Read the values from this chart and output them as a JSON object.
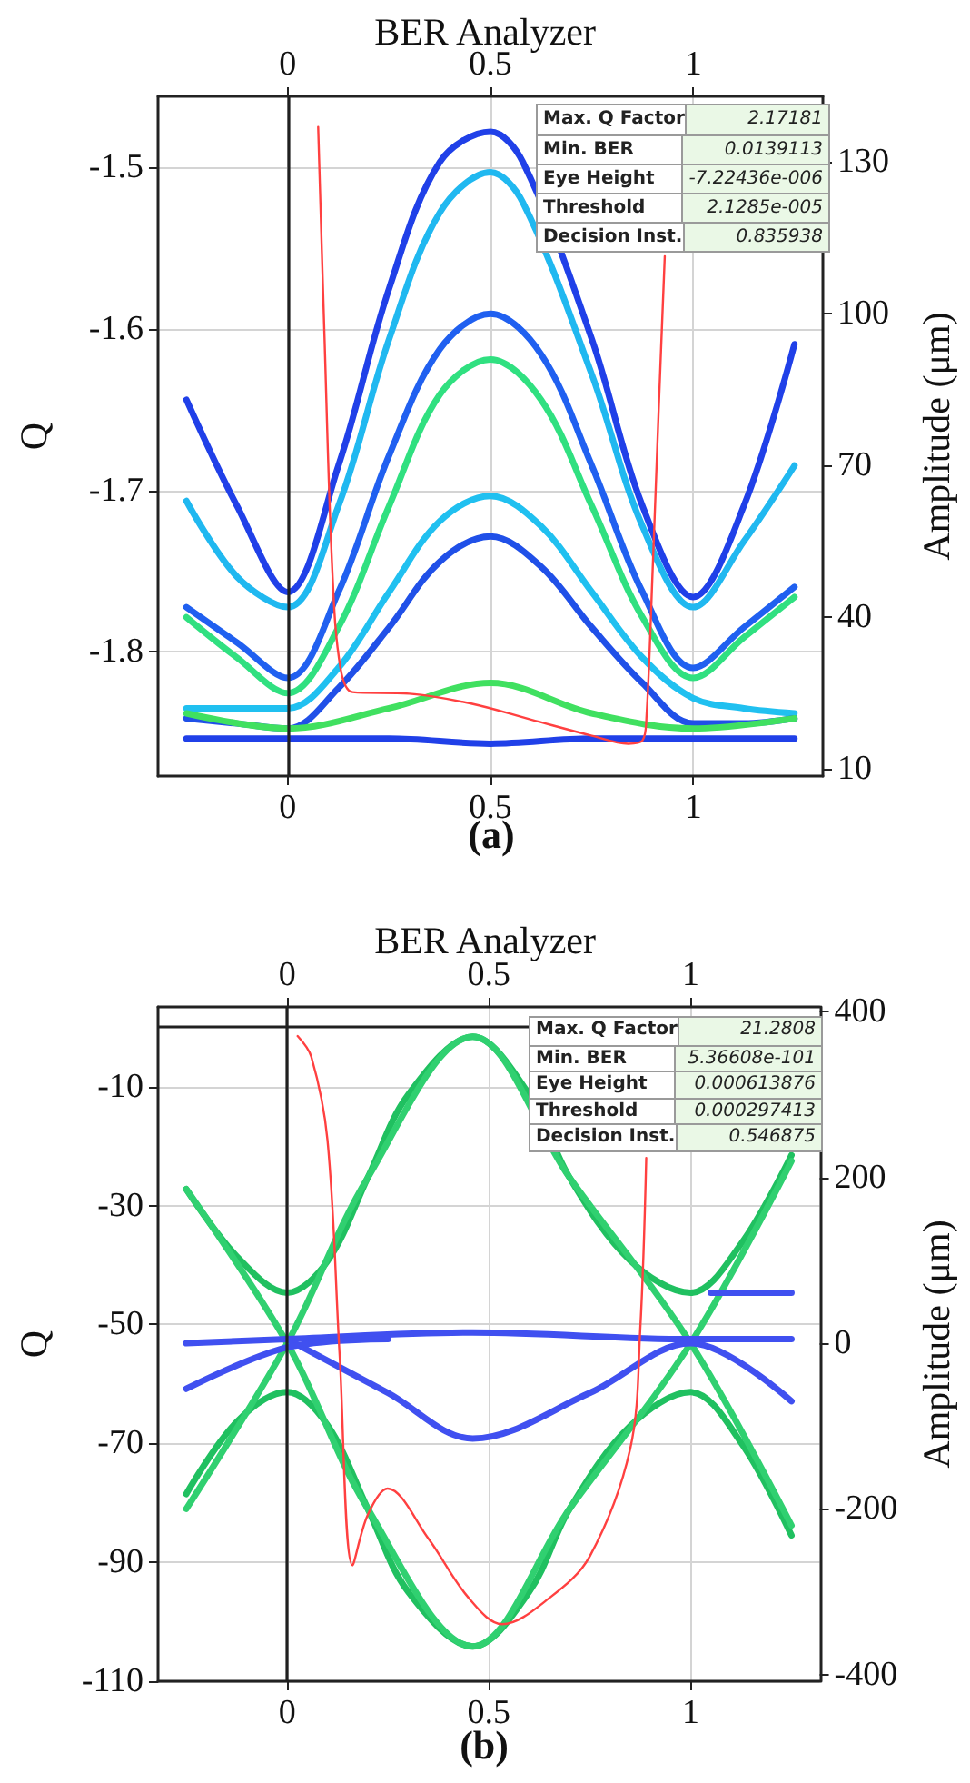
{
  "chart_data": [
    {
      "type": "line",
      "title": "BER Analyzer",
      "ylabel": "Q",
      "y2label": "Amplitude (μm)",
      "xlim": [
        -0.32,
        1.32
      ],
      "xticks": [
        0,
        0.5,
        1
      ],
      "x2lim": [
        -0.32,
        1.32
      ],
      "x2ticks": [
        0,
        0.5,
        1
      ],
      "ylim": [
        -1.877,
        -1.456
      ],
      "yticks": [
        -1.8,
        -1.7,
        -1.6,
        -1.5
      ],
      "y2lim": [
        8.6,
        143
      ],
      "y2ticks": [
        10,
        40,
        70,
        100,
        130
      ],
      "grid": true,
      "marker": "none",
      "ref_lines": [
        {
          "axis": "x",
          "value": 0,
          "color": "#202020"
        }
      ],
      "annotations": [
        "Max. Q Factor",
        "2.17181",
        "Min. BER",
        "0.0139113",
        "Eye Height",
        "-7.22436e-006",
        "Threshold",
        "2.1285e-005",
        "Decision Inst.",
        "0.835938",
        "(a)"
      ],
      "series": [
        {
          "color": "#2040e8",
          "axis": "y2",
          "x": [
            -0.25,
            -0.125,
            0,
            0.125,
            0.25,
            0.375,
            0.5,
            0.58,
            0.75,
            0.875,
            1,
            1.125,
            1.25
          ],
          "values": [
            83,
            62,
            45,
            70,
            105,
            130,
            136,
            130,
            95,
            62,
            44,
            62,
            94
          ]
        },
        {
          "color": "#20b8f0",
          "axis": "y2",
          "x": [
            -0.25,
            -0.125,
            0,
            0.125,
            0.25,
            0.375,
            0.5,
            0.58,
            0.75,
            0.875,
            1,
            1.125,
            1.25
          ],
          "values": [
            63,
            48,
            42,
            62,
            95,
            120,
            128,
            122,
            88,
            58,
            42,
            55,
            70
          ]
        },
        {
          "color": "#2060f0",
          "axis": "y2",
          "x": [
            -0.25,
            -0.125,
            0,
            0.125,
            0.25,
            0.375,
            0.5,
            0.625,
            0.75,
            0.875,
            1,
            1.125,
            1.25
          ],
          "values": [
            42,
            35,
            28,
            45,
            72,
            93,
            100,
            92,
            70,
            45,
            30,
            38,
            46
          ]
        },
        {
          "color": "#30e080",
          "axis": "y2",
          "x": [
            -0.25,
            -0.125,
            0,
            0.125,
            0.25,
            0.375,
            0.5,
            0.625,
            0.75,
            0.875,
            1,
            1.125,
            1.25
          ],
          "values": [
            40,
            32,
            25,
            38,
            62,
            84,
            91,
            83,
            62,
            40,
            28,
            36,
            44
          ]
        },
        {
          "color": "#20c0f0",
          "axis": "y2",
          "x": [
            -0.25,
            -0.125,
            0,
            0.125,
            0.25,
            0.375,
            0.5,
            0.625,
            0.75,
            0.875,
            1,
            1.125,
            1.25
          ],
          "values": [
            22,
            22,
            22,
            30,
            45,
            59,
            64,
            58,
            45,
            32,
            24,
            22,
            21
          ]
        },
        {
          "color": "#2050e8",
          "axis": "y2",
          "x": [
            -0.25,
            -0.125,
            0,
            0.125,
            0.25,
            0.375,
            0.5,
            0.625,
            0.75,
            0.875,
            1,
            1.125,
            1.25
          ],
          "values": [
            20,
            19,
            18,
            26,
            38,
            51,
            56,
            50,
            38,
            27,
            19,
            19,
            20
          ]
        },
        {
          "color": "#40e060",
          "axis": "y2",
          "x": [
            -0.25,
            0,
            0.25,
            0.5,
            0.75,
            1,
            1.25
          ],
          "values": [
            21,
            18,
            22,
            27,
            21,
            18,
            20
          ]
        },
        {
          "color": "#2040e8",
          "axis": "y2",
          "x": [
            -0.25,
            0,
            0.25,
            0.5,
            0.75,
            1,
            1.25
          ],
          "values": [
            16,
            16,
            16,
            15,
            16,
            16,
            16
          ]
        },
        {
          "color": "#ff4040",
          "x": [
            0.075,
            0.09,
            0.11,
            0.13,
            0.16,
            0.3,
            0.45,
            0.6,
            0.75,
            0.84,
            0.875,
            0.885,
            0.9,
            0.915,
            0.93
          ],
          "values": [
            -1.475,
            -1.6,
            -1.75,
            -1.81,
            -1.825,
            -1.826,
            -1.832,
            -1.842,
            -1.852,
            -1.857,
            -1.855,
            -1.84,
            -1.75,
            -1.65,
            -1.555
          ]
        }
      ]
    },
    {
      "type": "line",
      "title": "BER Analyzer",
      "ylabel": "Q",
      "y2label": "Amplitude (μm)",
      "xlim": [
        -0.32,
        1.32
      ],
      "xticks": [
        0,
        0.5,
        1
      ],
      "x2lim": [
        -0.32,
        1.32
      ],
      "x2ticks": [
        0,
        0.5,
        1
      ],
      "ylim": [
        -110,
        3.4
      ],
      "yticks": [
        -110,
        -90,
        -70,
        -50,
        -30,
        -10
      ],
      "y2lim": [
        -408,
        406
      ],
      "y2ticks": [
        -400,
        -200,
        0,
        200,
        400
      ],
      "grid": true,
      "marker": "none",
      "ref_lines": [
        {
          "axis": "x",
          "value": 0,
          "color": "#202020"
        },
        {
          "axis": "y",
          "value": 0,
          "color": "#202020"
        }
      ],
      "annotations": [
        "Max. Q Factor",
        "21.2808",
        "Min. BER",
        "5.36608e-101",
        "Eye Height",
        "0.000613876",
        "Threshold",
        "0.000297413",
        "Decision Inst.",
        "0.546875",
        "(b)"
      ],
      "series": [
        {
          "color": "#20c060",
          "axis": "y2",
          "x": [
            -0.25,
            -0.125,
            0,
            0.1,
            0.2,
            0.3,
            0.46,
            0.6,
            0.7,
            0.85,
            1,
            1.125,
            1.25
          ],
          "values": [
            186,
            105,
            61,
            99,
            200,
            300,
            370,
            300,
            200,
            100,
            61,
            120,
            227
          ]
        },
        {
          "color": "#20c060",
          "axis": "y2",
          "x": [
            -0.25,
            -0.125,
            0,
            0.1,
            0.2,
            0.3,
            0.46,
            0.6,
            0.7,
            0.85,
            1,
            1.125,
            1.25
          ],
          "values": [
            -182,
            -95,
            -59,
            -99,
            -200,
            -300,
            -366,
            -300,
            -200,
            -100,
            -59,
            -120,
            -232
          ]
        },
        {
          "color": "#30d070",
          "axis": "y2",
          "x": [
            -0.25,
            0,
            0.2,
            0.46,
            0.7,
            1,
            1.25
          ],
          "values": [
            -200,
            0,
            200,
            370,
            200,
            0,
            -220
          ]
        },
        {
          "color": "#30d070",
          "axis": "y2",
          "x": [
            -0.25,
            0,
            0.2,
            0.46,
            0.7,
            1,
            1.25
          ],
          "values": [
            186,
            0,
            -200,
            -366,
            -200,
            0,
            220
          ]
        },
        {
          "color": "#4050f0",
          "axis": "y2",
          "x": [
            -0.25,
            0,
            0.46,
            1,
            1.25
          ],
          "values": [
            0,
            5,
            13,
            5,
            5
          ]
        },
        {
          "color": "#4050f0",
          "axis": "y2",
          "x": [
            0,
            0.25,
            0.46,
            0.75,
            1,
            1.25
          ],
          "values": [
            5,
            -60,
            -115,
            -60,
            0,
            -70
          ]
        },
        {
          "color": "#4050f0",
          "axis": "y2",
          "x": [
            -0.25,
            0,
            0.25
          ],
          "values": [
            -55,
            -5,
            5
          ]
        },
        {
          "color": "#4050f0",
          "axis": "y2",
          "x": [
            1.05,
            1.25
          ],
          "values": [
            61,
            61
          ]
        },
        {
          "color": "#ff4040",
          "x": [
            0.026,
            0.06,
            0.1,
            0.13,
            0.162,
            0.2,
            0.249,
            0.35,
            0.45,
            0.533,
            0.65,
            0.75,
            0.85,
            0.875,
            0.89
          ],
          "values": [
            -1.5,
            -5,
            -19,
            -55,
            -90.5,
            -82,
            -77.6,
            -86,
            -96,
            -100.4,
            -96,
            -89,
            -71,
            -51,
            -22
          ]
        }
      ]
    }
  ]
}
